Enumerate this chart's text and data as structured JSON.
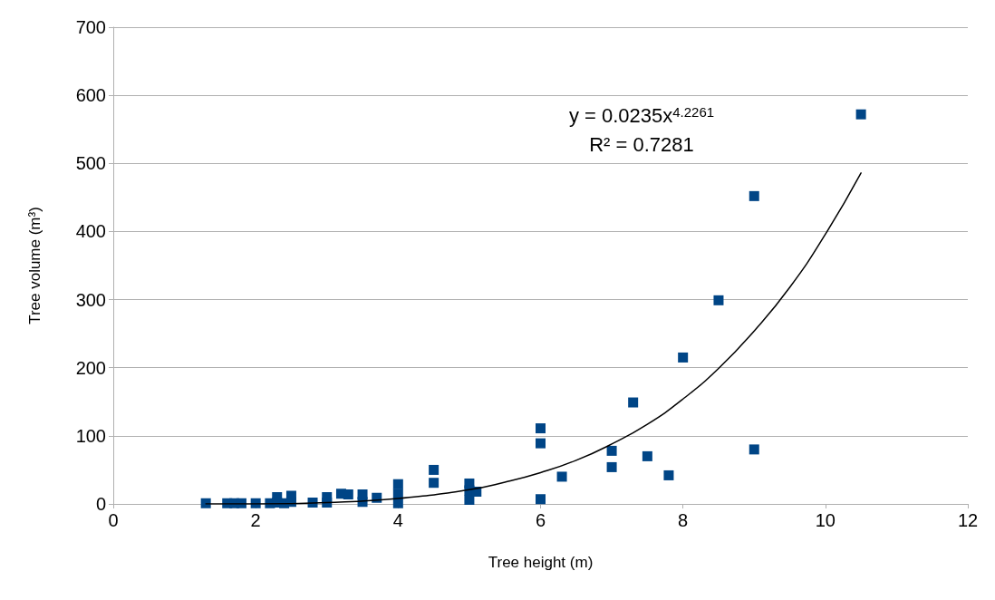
{
  "chart_data": {
    "type": "scatter",
    "xlabel": "Tree height (m)",
    "ylabel": "Tree volume (m³)",
    "annotations": [
      "y = 0.0235x$^{4.2261}$",
      "R² = 0.7281"
    ],
    "xlim": [
      0,
      12
    ],
    "xticks": [
      0,
      2,
      4,
      6,
      8,
      10,
      12
    ],
    "ylim": [
      0,
      700
    ],
    "yticks": [
      0,
      100,
      200,
      300,
      400,
      500,
      600,
      700
    ],
    "grid": "y",
    "marker": "square",
    "series": [
      {
        "color": "#004586",
        "x": [
          1.3,
          1.6,
          1.7,
          1.8,
          2.0,
          2.2,
          2.3,
          2.3,
          2.4,
          2.5,
          2.5,
          2.8,
          3.0,
          3.0,
          3.2,
          3.3,
          3.5,
          3.5,
          3.7,
          4,
          4,
          4,
          4.5,
          4.5,
          5,
          5,
          5,
          5.1,
          6,
          6,
          6,
          6.3,
          7,
          7,
          7.3,
          7.5,
          7.8,
          8,
          8.5,
          9,
          9,
          10.5
        ],
        "values": [
          1,
          1,
          1,
          1,
          1,
          1,
          10,
          2,
          1,
          12,
          3,
          2,
          10,
          2,
          15,
          14,
          14,
          3,
          9,
          29,
          15,
          1,
          50,
          31,
          30,
          20,
          6,
          18,
          111,
          89,
          7,
          40,
          78,
          54,
          149,
          70,
          42,
          215,
          299,
          452,
          80,
          572
        ]
      },
      {
        "type": "line",
        "color": "#000000",
        "marker": "none",
        "line_style": "solid",
        "x": [
          1.3,
          2,
          3,
          4,
          5,
          5.5,
          6,
          6.5,
          7,
          7.5,
          8,
          8.5,
          9,
          9.5,
          10,
          10.5
        ],
        "values": [
          0,
          0,
          2,
          8,
          21,
          32,
          46,
          64,
          88,
          117,
          154,
          199,
          254,
          318,
          396,
          486
        ]
      }
    ]
  }
}
